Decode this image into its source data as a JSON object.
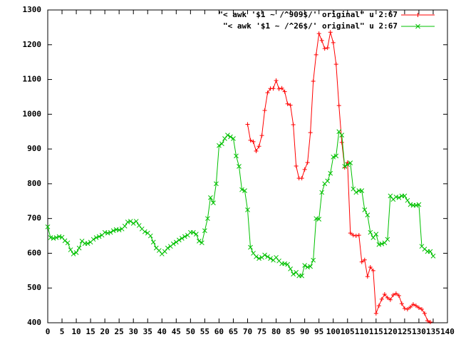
{
  "chart_data": {
    "type": "line",
    "xlim": [
      0,
      140
    ],
    "xticks": [
      0,
      5,
      10,
      15,
      20,
      25,
      30,
      35,
      40,
      45,
      50,
      55,
      60,
      65,
      70,
      75,
      80,
      85,
      90,
      95,
      100,
      105,
      110,
      115,
      120,
      125,
      130,
      135,
      140
    ],
    "ylim": [
      400,
      1300
    ],
    "yticks": [
      400,
      500,
      600,
      700,
      800,
      900,
      1000,
      1100,
      1200,
      1300
    ],
    "legend_position": "top-right",
    "series": [
      {
        "name": "\"< awk '$1 ~ /^909$/' original\" u 2:67",
        "color": "#ff0000",
        "marker": "+",
        "x": [
          70,
          71,
          72,
          73,
          74,
          75,
          76,
          77,
          78,
          79,
          80,
          81,
          82,
          83,
          84,
          85,
          86,
          87,
          88,
          89,
          90,
          91,
          92,
          93,
          94,
          95,
          96,
          97,
          98,
          99,
          100,
          101,
          102,
          103,
          104,
          105,
          106,
          107,
          108,
          109,
          110,
          111,
          112,
          113,
          114,
          115,
          116,
          117,
          118,
          119,
          120,
          121,
          122,
          123,
          124,
          125,
          126,
          127,
          128,
          129,
          130,
          131,
          132,
          133,
          134
        ],
        "values": [
          971,
          925,
          921,
          894,
          908,
          939,
          1011,
          1062,
          1074,
          1074,
          1097,
          1073,
          1075,
          1065,
          1030,
          1026,
          970,
          851,
          816,
          816,
          841,
          861,
          947,
          1095,
          1171,
          1232,
          1212,
          1189,
          1191,
          1236,
          1206,
          1144,
          1025,
          919,
          847,
          861,
          658,
          652,
          650,
          652,
          575,
          581,
          533,
          560,
          550,
          427,
          449,
          468,
          482,
          472,
          466,
          480,
          484,
          478,
          455,
          441,
          439,
          445,
          453,
          449,
          443,
          439,
          427,
          406,
          402
        ]
      },
      {
        "name": "\"< awk '$1 ~ /^26$/' original\" u 2:67",
        "color": "#00c000",
        "marker": "x",
        "x": [
          0,
          1,
          2,
          3,
          4,
          5,
          6,
          7,
          8,
          9,
          10,
          11,
          12,
          13,
          14,
          15,
          16,
          17,
          18,
          19,
          20,
          21,
          22,
          23,
          24,
          25,
          26,
          27,
          28,
          29,
          30,
          31,
          32,
          33,
          34,
          35,
          36,
          37,
          38,
          39,
          40,
          41,
          42,
          43,
          44,
          45,
          46,
          47,
          48,
          49,
          50,
          51,
          52,
          53,
          54,
          55,
          56,
          57,
          58,
          59,
          60,
          61,
          62,
          63,
          64,
          65,
          66,
          67,
          68,
          69,
          70,
          71,
          72,
          73,
          74,
          75,
          76,
          77,
          78,
          79,
          80,
          81,
          82,
          83,
          84,
          85,
          86,
          87,
          88,
          89,
          90,
          91,
          92,
          93,
          94,
          95,
          96,
          97,
          98,
          99,
          100,
          101,
          102,
          103,
          104,
          105,
          106,
          107,
          108,
          109,
          110,
          111,
          112,
          113,
          114,
          115,
          116,
          117,
          118,
          119,
          120,
          121,
          122,
          123,
          124,
          125,
          126,
          127,
          128,
          129,
          130,
          131,
          132,
          133,
          134,
          135
        ],
        "values": [
          676,
          645,
          643,
          645,
          648,
          646,
          636,
          630,
          610,
          598,
          602,
          615,
          635,
          628,
          628,
          632,
          640,
          645,
          648,
          652,
          660,
          658,
          660,
          665,
          668,
          667,
          670,
          678,
          690,
          692,
          686,
          692,
          680,
          670,
          662,
          658,
          650,
          632,
          615,
          608,
          598,
          605,
          615,
          620,
          627,
          632,
          638,
          643,
          648,
          652,
          660,
          660,
          655,
          635,
          630,
          665,
          700,
          760,
          745,
          800,
          910,
          915,
          930,
          940,
          935,
          930,
          880,
          850,
          783,
          780,
          725,
          617,
          600,
          590,
          585,
          588,
          595,
          590,
          585,
          580,
          588,
          578,
          570,
          570,
          568,
          555,
          540,
          545,
          535,
          535,
          565,
          560,
          562,
          580,
          700,
          698,
          775,
          800,
          808,
          830,
          877,
          880,
          950,
          940,
          850,
          855,
          860,
          785,
          775,
          780,
          780,
          725,
          710,
          660,
          645,
          655,
          625,
          627,
          630,
          640,
          765,
          755,
          762,
          760,
          765,
          765,
          752,
          740,
          738,
          738,
          740,
          620,
          612,
          605,
          605,
          592
        ]
      }
    ]
  }
}
